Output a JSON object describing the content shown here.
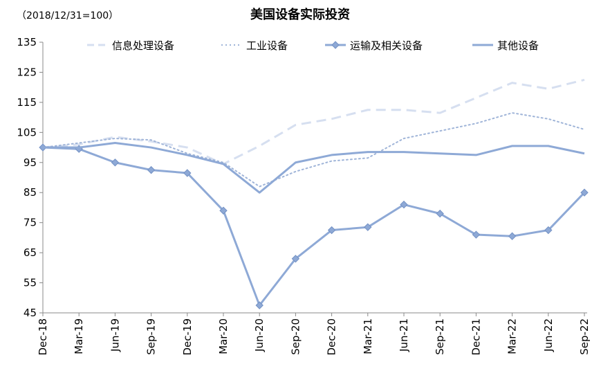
{
  "chart_data": {
    "type": "line",
    "title": "美国设备实际投资",
    "subtitle": "（2018/12/31=100）",
    "xlabel": "",
    "ylabel": "",
    "ylim": [
      45,
      135
    ],
    "yticks": [
      45,
      55,
      65,
      75,
      85,
      95,
      105,
      115,
      125,
      135
    ],
    "categories": [
      "Dec-18",
      "Mar-19",
      "Jun-19",
      "Sep-19",
      "Dec-19",
      "Mar-20",
      "Jun-20",
      "Sep-20",
      "Dec-20",
      "Mar-21",
      "Jun-21",
      "Sep-21",
      "Dec-21",
      "Mar-22",
      "Jun-22",
      "Sep-22"
    ],
    "legend_position": "top",
    "grid": false,
    "series": [
      {
        "name": "信息处理设备",
        "style": "dashed",
        "color": "#d6dff0",
        "values": [
          100,
          101,
          103.5,
          102,
          100,
          94.5,
          100.5,
          107.5,
          109.5,
          112.5,
          112.5,
          111.5,
          116.5,
          121.5,
          119.5,
          122.5
        ]
      },
      {
        "name": "工业设备",
        "style": "dotted",
        "color": "#9fb4d8",
        "values": [
          100,
          101.5,
          103,
          102.5,
          98,
          95,
          87,
          92,
          95.5,
          96.5,
          103,
          105.5,
          108,
          111.5,
          109.5,
          106
        ]
      },
      {
        "name": "运输及相关设备",
        "style": "solid-marker",
        "color": "#8ea9d6",
        "values": [
          100,
          99.5,
          95,
          92.5,
          91.5,
          79,
          47.5,
          63,
          72.5,
          73.5,
          81,
          78,
          71,
          70.5,
          72.5,
          85
        ]
      },
      {
        "name": "其他设备",
        "style": "solid",
        "color": "#8ea9d6",
        "values": [
          100,
          100,
          101.5,
          100,
          97.5,
          94.5,
          85,
          95,
          97.5,
          98.5,
          98.5,
          98,
          97.5,
          100.5,
          100.5,
          98
        ]
      }
    ]
  }
}
